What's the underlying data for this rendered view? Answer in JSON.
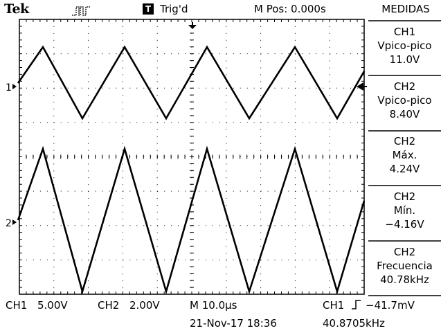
{
  "header": {
    "brand": "Tek",
    "trigger_badge": "T",
    "trigger_status": "Trig'd",
    "m_pos": "M Pos: 0.000s",
    "panel_title": "MEDIDAS"
  },
  "markers": {
    "ch1": "1",
    "ch2": "2"
  },
  "measurements": [
    {
      "channel": "CH1",
      "type": "Vpico-pico",
      "value": "11.0V"
    },
    {
      "channel": "CH2",
      "type": "Vpico-pico",
      "value": "8.40V"
    },
    {
      "channel": "CH2",
      "type": "Máx.",
      "value": "4.24V"
    },
    {
      "channel": "CH2",
      "type": "Mín.",
      "value": "−4.16V"
    },
    {
      "channel": "CH2",
      "type": "Frecuencia",
      "value": "40.78kHz"
    }
  ],
  "footer": {
    "ch1_label": "CH1",
    "ch1_scale": "5.00V",
    "ch2_label": "CH2",
    "ch2_scale": "2.00V",
    "timebase": "M 10.0µs",
    "trigger_source": "CH1",
    "trigger_level": "−41.7mV",
    "datetime": "21-Nov-17 18:36",
    "trigger_freq": "40.8705kHz"
  },
  "icons": {
    "acquisition": "pulse-run-icon",
    "trigger_edge": "rising-edge-icon",
    "trigger_position": "trigger-position-arrow-icon",
    "trigger_level": "trigger-level-arrow-icon"
  },
  "colors": {
    "background": "#ffffff",
    "trace": "#000000"
  }
}
